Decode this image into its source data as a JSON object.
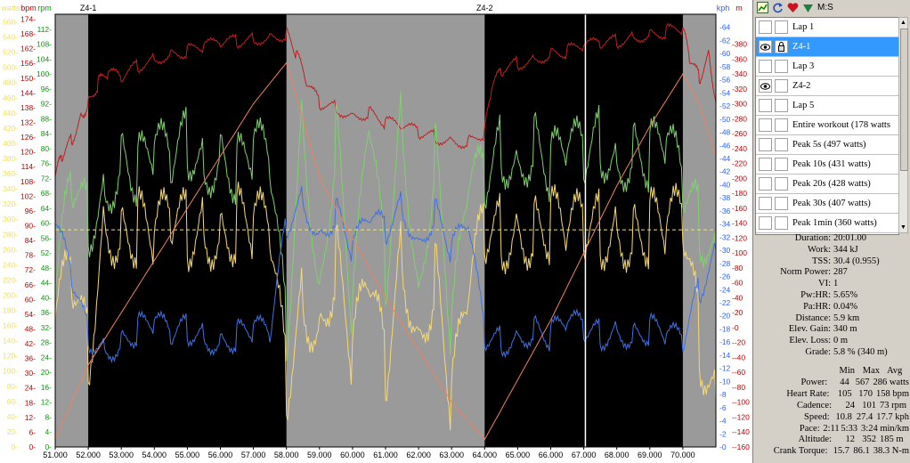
{
  "laps_panel": {
    "toolbar": {
      "label": "M:S"
    },
    "laps": [
      {
        "label": "Lap 1",
        "eye": false,
        "selected": false
      },
      {
        "label": "Z4-1",
        "eye": true,
        "selected": true
      },
      {
        "label": "Lap 3",
        "eye": false,
        "selected": false
      },
      {
        "label": "Z4-2",
        "eye": true,
        "selected": false
      },
      {
        "label": "Lap 5",
        "eye": false,
        "selected": false
      },
      {
        "label": "Entire workout (178 watts",
        "eye": false,
        "selected": false
      },
      {
        "label": "Peak 5s (497 watts)",
        "eye": false,
        "selected": false
      },
      {
        "label": "Peak 10s (431 watts)",
        "eye": false,
        "selected": false
      },
      {
        "label": "Peak 20s (428 watts)",
        "eye": false,
        "selected": false
      },
      {
        "label": "Peak 30s (407 watts)",
        "eye": false,
        "selected": false
      },
      {
        "label": "Peak 1min (360 watts)",
        "eye": false,
        "selected": false
      }
    ]
  },
  "summary": [
    {
      "label": "Duration:",
      "value": "20:01.00"
    },
    {
      "label": "Work:",
      "value": "344 kJ"
    },
    {
      "label": "TSS:",
      "value": "30.4 (0.955)"
    },
    {
      "label": "Norm Power:",
      "value": "287"
    },
    {
      "label": "VI:",
      "value": "1"
    },
    {
      "label": "Pw:HR:",
      "value": "5.65%"
    },
    {
      "label": "Pa:HR:",
      "value": "0.04%"
    },
    {
      "label": "Distance:",
      "value": "5.9 km"
    },
    {
      "label": "Elev. Gain:",
      "value": "340 m"
    },
    {
      "label": "Elev. Loss:",
      "value": "0 m"
    },
    {
      "label": "Grade:",
      "value": "5.8 % (340 m)"
    }
  ],
  "minmax_header": {
    "min": "Min",
    "max": "Max",
    "avg": "Avg"
  },
  "minmax": [
    {
      "label": "Power:",
      "min": "44",
      "max": "567",
      "avg": "286 watts"
    },
    {
      "label": "Heart Rate:",
      "min": "105",
      "max": "170",
      "avg": "158 bpm"
    },
    {
      "label": "Cadence:",
      "min": "24",
      "max": "101",
      "avg": "73 rpm"
    },
    {
      "label": "Speed:",
      "min": "10.8",
      "max": "27.4",
      "avg": "17.7 kph"
    },
    {
      "label": "Pace:",
      "min": "2:11",
      "max": "5:33",
      "avg": "3:24 min/km"
    },
    {
      "label": "Altitude:",
      "min": "12",
      "max": "352",
      "avg": "185 m"
    },
    {
      "label": "Crank Torque:",
      "min": "15.7",
      "max": "86.1",
      "avg": "38.3 N-m"
    }
  ],
  "chart_data": {
    "type": "line",
    "x_label": "",
    "x_range": [
      51.0,
      71.0
    ],
    "x_ticks": [
      "51.000",
      "52.000",
      "53.000",
      "54.000",
      "55.000",
      "56.000",
      "57.000",
      "58.000",
      "59.000",
      "60.000",
      "61.000",
      "62.000",
      "63.000",
      "64.000",
      "65.000",
      "66.000",
      "67.000",
      "68.000",
      "69.000",
      "70.000"
    ],
    "x_tick_values": [
      51,
      52,
      53,
      54,
      55,
      56,
      57,
      58,
      59,
      60,
      61,
      62,
      63,
      64,
      65,
      66,
      67,
      68,
      69,
      70
    ],
    "lap_markers": [
      {
        "label": "Z4-1",
        "x": 52.0
      },
      {
        "label": "Z4-2",
        "x": 64.0
      }
    ],
    "highlight_ranges": [
      {
        "label": "Z4-1",
        "from": 52.0,
        "to": 58.0
      },
      {
        "label": "Z4-2",
        "from": 64.0,
        "to": 70.0
      }
    ],
    "cursor_x": 67.05,
    "left_axes": [
      {
        "label": "watts",
        "color": "#f0e060",
        "range": [
          0,
          570
        ],
        "ticks": [
          0,
          20,
          40,
          60,
          80,
          100,
          120,
          140,
          160,
          180,
          200,
          220,
          240,
          260,
          280,
          300,
          320,
          340,
          360,
          380,
          400,
          420,
          440,
          460,
          480,
          500,
          520,
          540,
          560
        ]
      },
      {
        "label": "bpm",
        "color": "#c00000",
        "range": [
          0,
          176
        ],
        "ticks": [
          0,
          6,
          12,
          18,
          24,
          30,
          36,
          42,
          48,
          54,
          60,
          66,
          72,
          78,
          84,
          90,
          96,
          102,
          108,
          114,
          120,
          126,
          132,
          138,
          144,
          150,
          156,
          162,
          168,
          174
        ]
      },
      {
        "label": "rpm",
        "color": "#00a000",
        "range": [
          0,
          116
        ],
        "ticks": [
          0,
          4,
          8,
          12,
          16,
          20,
          24,
          28,
          32,
          36,
          40,
          44,
          48,
          52,
          56,
          60,
          64,
          68,
          72,
          76,
          80,
          84,
          88,
          92,
          96,
          100,
          104,
          108,
          112
        ]
      }
    ],
    "right_axes": [
      {
        "label": "kph",
        "color": "#3060ff",
        "range": [
          0,
          66
        ],
        "ticks": [
          0,
          2,
          4,
          6,
          8,
          10,
          12,
          14,
          16,
          18,
          20,
          22,
          24,
          26,
          28,
          30,
          32,
          34,
          36,
          38,
          40,
          42,
          44,
          46,
          48,
          50,
          52,
          54,
          56,
          58,
          60,
          62,
          64
        ]
      },
      {
        "label": "m",
        "color": "#c00000",
        "range": [
          -160,
          420
        ],
        "ticks": [
          -160,
          -140,
          -120,
          -100,
          -80,
          -60,
          -40,
          -20,
          0,
          20,
          40,
          60,
          80,
          100,
          120,
          140,
          160,
          180,
          200,
          220,
          240,
          260,
          280,
          300,
          320,
          340,
          360,
          380
        ]
      }
    ],
    "reference_line": {
      "series": "Power",
      "value": 286,
      "color": "#f0e080"
    },
    "series": [
      {
        "name": "Power",
        "axis": "watts",
        "color": "#f5d878",
        "x": [
          51.0,
          51.5,
          52.0,
          52.5,
          53.0,
          53.5,
          54.0,
          54.5,
          55.0,
          55.5,
          56.0,
          56.5,
          57.0,
          57.5,
          58.0,
          58.5,
          59.0,
          59.5,
          60.0,
          60.5,
          61.0,
          61.5,
          62.0,
          62.5,
          63.0,
          63.5,
          64.0,
          64.5,
          65.0,
          65.5,
          66.0,
          66.5,
          67.0,
          67.5,
          68.0,
          68.5,
          69.0,
          69.5,
          70.0,
          70.5,
          71.0
        ],
        "values": [
          170,
          230,
          120,
          300,
          280,
          290,
          275,
          300,
          285,
          290,
          280,
          295,
          290,
          285,
          80,
          200,
          150,
          250,
          120,
          220,
          100,
          260,
          140,
          230,
          60,
          200,
          290,
          280,
          290,
          285,
          295,
          280,
          290,
          285,
          290,
          280,
          290,
          285,
          300,
          140,
          60
        ]
      },
      {
        "name": "Heart Rate",
        "axis": "bpm",
        "color": "#c02020",
        "x": [
          51.0,
          51.2,
          51.5,
          51.8,
          52.0,
          52.3,
          52.6,
          53.0,
          53.5,
          54.0,
          54.5,
          55.0,
          55.5,
          56.0,
          56.5,
          57.0,
          57.5,
          58.0,
          58.3,
          58.6,
          59.0,
          59.5,
          60.0,
          60.5,
          61.0,
          61.5,
          62.0,
          62.5,
          63.0,
          63.5,
          64.0,
          64.2,
          64.5,
          65.0,
          65.5,
          66.0,
          66.5,
          67.0,
          67.5,
          68.0,
          68.5,
          69.0,
          69.5,
          70.0,
          70.2,
          70.5,
          70.8,
          71.0
        ],
        "values": [
          110,
          118,
          125,
          135,
          140,
          148,
          152,
          150,
          155,
          158,
          160,
          161,
          163,
          164,
          165,
          166,
          167,
          168,
          160,
          148,
          140,
          138,
          135,
          136,
          132,
          130,
          128,
          126,
          125,
          124,
          128,
          145,
          153,
          156,
          158,
          160,
          161,
          163,
          164,
          165,
          167,
          168,
          169,
          170,
          158,
          150,
          160,
          140
        ]
      },
      {
        "name": "Cadence",
        "axis": "rpm",
        "color": "#80d070",
        "x": [
          51.0,
          51.5,
          52.0,
          52.5,
          53.0,
          53.5,
          54.0,
          54.5,
          55.0,
          55.5,
          56.0,
          56.5,
          57.0,
          57.5,
          58.0,
          58.5,
          59.0,
          59.5,
          60.0,
          60.5,
          61.0,
          61.5,
          62.0,
          62.5,
          63.0,
          63.5,
          64.0,
          64.5,
          65.0,
          65.5,
          66.0,
          66.5,
          67.0,
          67.5,
          68.0,
          68.5,
          69.0,
          69.5,
          70.0,
          70.5,
          71.0
        ],
        "values": [
          40,
          72,
          60,
          68,
          78,
          74,
          80,
          76,
          82,
          75,
          79,
          74,
          80,
          76,
          30,
          90,
          40,
          85,
          35,
          88,
          45,
          90,
          40,
          80,
          30,
          70,
          72,
          80,
          76,
          82,
          75,
          80,
          78,
          82,
          76,
          80,
          78,
          82,
          70,
          60,
          50
        ]
      },
      {
        "name": "Speed",
        "axis": "kph",
        "color": "#4070e0",
        "x": [
          51.0,
          51.5,
          52.0,
          52.5,
          53.0,
          53.5,
          54.0,
          54.5,
          55.0,
          55.5,
          56.0,
          56.5,
          57.0,
          57.5,
          58.0,
          58.5,
          59.0,
          59.5,
          60.0,
          60.5,
          61.0,
          61.5,
          62.0,
          62.5,
          63.0,
          63.5,
          64.0,
          64.5,
          65.0,
          65.5,
          66.0,
          66.5,
          67.0,
          67.5,
          68.0,
          68.5,
          69.0,
          69.5,
          70.0,
          70.5,
          71.0
        ],
        "values": [
          34,
          26,
          17,
          15,
          16,
          18,
          19,
          17,
          18,
          17,
          16,
          17,
          18,
          17,
          34,
          38,
          32,
          36,
          30,
          35,
          33,
          37,
          31,
          36,
          30,
          34,
          17,
          16,
          17,
          18,
          17,
          19,
          18,
          17,
          18,
          17,
          18,
          17,
          16,
          24,
          30
        ]
      },
      {
        "name": "Altitude",
        "axis": "m",
        "color": "#f08060",
        "x": [
          51.0,
          51.5,
          52.0,
          53.0,
          54.0,
          55.0,
          56.0,
          57.0,
          58.0,
          58.5,
          59.0,
          60.0,
          61.0,
          62.0,
          63.0,
          64.0,
          65.0,
          66.0,
          67.0,
          68.0,
          69.0,
          70.0,
          70.5,
          71.0
        ],
        "values": [
          -150,
          -100,
          -50,
          20,
          90,
          160,
          230,
          300,
          355,
          280,
          200,
          120,
          40,
          -30,
          -100,
          -150,
          -70,
          10,
          100,
          190,
          270,
          340,
          300,
          230
        ]
      }
    ]
  }
}
